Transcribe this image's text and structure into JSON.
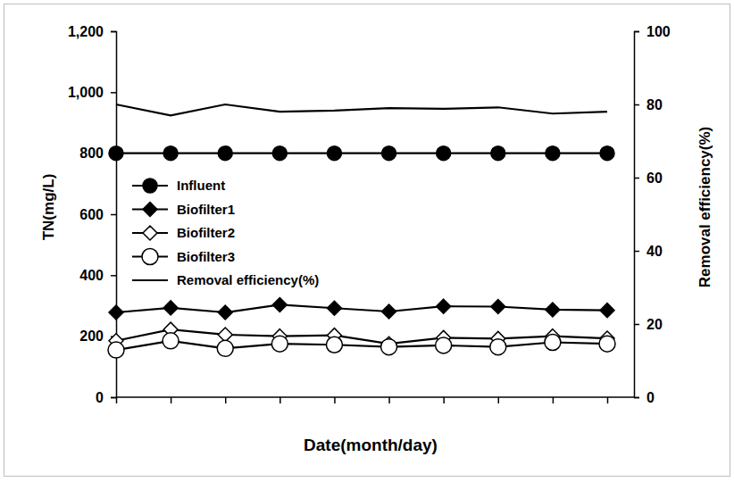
{
  "chart_data": {
    "type": "line",
    "x_label": "Date(month/day)",
    "y_label": "TN(mg/L)",
    "y2_label": "Removal efficiency(%)",
    "categories": [
      null,
      null,
      null,
      null,
      null,
      null,
      null,
      null,
      null,
      null
    ],
    "ylim": [
      0,
      1200
    ],
    "yticks": [
      0,
      200,
      400,
      600,
      800,
      {
        "value": 1000,
        "label": "1,000"
      },
      {
        "value": 1200,
        "label": "1,200"
      }
    ],
    "y2lim": [
      0,
      100
    ],
    "y2ticks": [
      0,
      20,
      40,
      60,
      80,
      100
    ],
    "grid": false,
    "legend": "left",
    "tick_labels": "y",
    "series": [
      {
        "name": "Influent",
        "color": "#000000",
        "marker": "circle",
        "values": [
          800,
          800,
          800,
          800,
          800,
          800,
          800,
          800,
          800,
          800
        ]
      },
      {
        "name": "Biofilter1",
        "color": "#000000",
        "marker": "diamond",
        "values": [
          278,
          293,
          278,
          303,
          292,
          281,
          298,
          297,
          287,
          285
        ]
      },
      {
        "name": "Biofilter2",
        "color": "#000000",
        "marker": "open-diamond",
        "values": [
          185,
          222,
          205,
          200,
          203,
          175,
          195,
          192,
          200,
          193
        ]
      },
      {
        "name": "Biofilter3",
        "color": "#000000",
        "marker": "open-circle",
        "values": [
          155,
          185,
          160,
          175,
          172,
          165,
          170,
          165,
          180,
          175
        ]
      },
      {
        "name": "Removal efficiency(%)",
        "color": "#000000",
        "marker": "none",
        "axis": "y2",
        "values": [
          80,
          77,
          80,
          78,
          78.3,
          79,
          78.8,
          79.2,
          77.5,
          78
        ]
      }
    ]
  }
}
